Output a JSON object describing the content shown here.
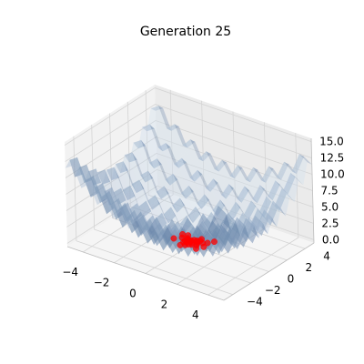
{
  "chart_data": {
    "type": "scatter",
    "title": "Generation 25",
    "surface": {
      "function": "x^2/4 + y^2/4 + 1 - cos(2*pi*x) - cos(2*pi*y)",
      "color": "#4d79a8"
    },
    "axes": {
      "x": {
        "range": [
          -5,
          5
        ],
        "ticks": [
          -4,
          -2,
          0,
          2,
          4
        ]
      },
      "y": {
        "range": [
          -5,
          5
        ],
        "ticks": [
          -4,
          -2,
          0,
          2,
          4
        ]
      },
      "z": {
        "range": [
          -0.5,
          15.5
        ],
        "ticks": [
          0.0,
          2.5,
          5.0,
          7.5,
          10.0,
          12.5,
          15.0
        ]
      }
    },
    "grid": true,
    "series": [
      {
        "color": "#ff0000",
        "points": [
          [
            0.0,
            0.0,
            0.0
          ],
          [
            0.15,
            -0.1,
            0.0
          ],
          [
            -0.2,
            0.1,
            0.0
          ],
          [
            0.3,
            0.2,
            0.0
          ],
          [
            -0.1,
            -0.25,
            0.0
          ],
          [
            0.25,
            -0.3,
            0.0
          ],
          [
            -0.3,
            -0.1,
            0.0
          ],
          [
            0.05,
            0.3,
            0.0
          ],
          [
            0.4,
            0.05,
            0.0
          ],
          [
            -0.05,
            0.15,
            0.0
          ],
          [
            0.2,
            0.35,
            0.0
          ],
          [
            -0.35,
            0.25,
            0.0
          ],
          [
            0.1,
            -0.4,
            0.0
          ],
          [
            0.5,
            -0.2,
            0.0
          ],
          [
            -0.25,
            -0.35,
            0.0
          ],
          [
            0.35,
            0.45,
            0.0
          ],
          [
            0.6,
            0.3,
            0.0
          ],
          [
            -0.6,
            0.1,
            0.0
          ],
          [
            0.0,
            -0.6,
            0.0
          ],
          [
            0.8,
            0.5,
            0.0
          ],
          [
            0.9,
            -0.1,
            0.0
          ],
          [
            -0.9,
            -0.3,
            0.0
          ],
          [
            1.0,
            0.9,
            0.0
          ],
          [
            -0.5,
            0.6,
            0.0
          ],
          [
            0.3,
            0.7,
            0.0
          ],
          [
            -0.2,
            -0.8,
            0.0
          ],
          [
            0.7,
            -0.6,
            0.0
          ],
          [
            -0.8,
            0.5,
            0.0
          ]
        ]
      }
    ]
  }
}
